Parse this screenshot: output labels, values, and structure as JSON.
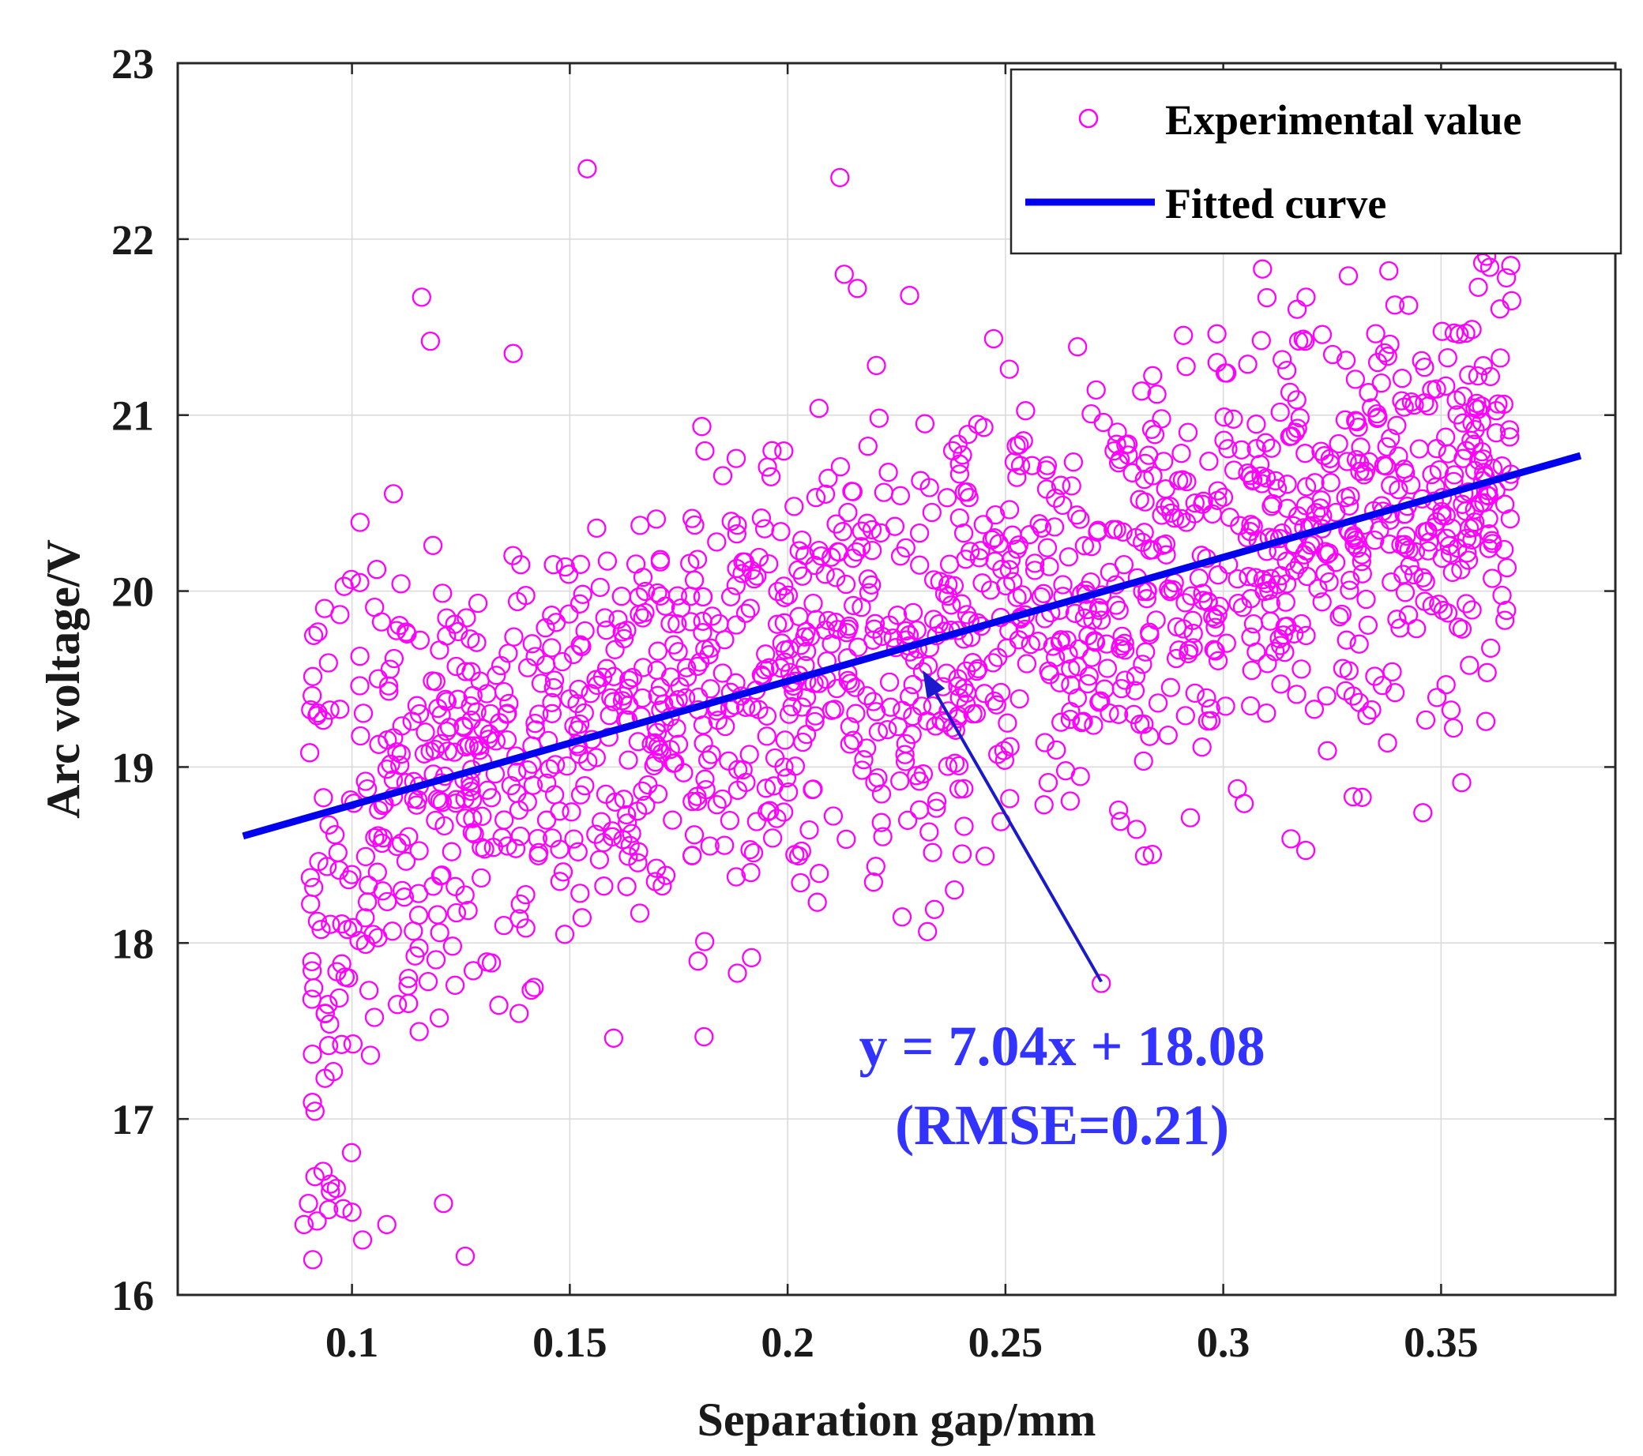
{
  "chart_data": {
    "type": "scatter",
    "title": "",
    "xlabel": "Separation gap/mm",
    "ylabel": "Arc voltage/V",
    "xlim": [
      0.06,
      0.39
    ],
    "ylim": [
      16,
      23
    ],
    "xticks": [
      0.1,
      0.15,
      0.2,
      0.25,
      0.3,
      0.35
    ],
    "xtick_labels": [
      "0.1",
      "0.15",
      "0.2",
      "0.25",
      "0.3",
      "0.35"
    ],
    "yticks": [
      16,
      17,
      18,
      19,
      20,
      21,
      22,
      23
    ],
    "ytick_labels": [
      "16",
      "17",
      "18",
      "19",
      "20",
      "21",
      "22",
      "23"
    ],
    "grid": true,
    "legend_position": "top-right",
    "series": [
      {
        "name": "Experimental value",
        "kind": "scatter",
        "marker": "circle-open",
        "color": "#ff00ff",
        "x_range": [
          0.09,
          0.367
        ],
        "point_count": 1500,
        "noise_std": 0.6,
        "outliers": [
          {
            "x": 0.154,
            "y": 22.4
          },
          {
            "x": 0.212,
            "y": 22.35
          },
          {
            "x": 0.116,
            "y": 21.67
          },
          {
            "x": 0.118,
            "y": 21.42
          },
          {
            "x": 0.137,
            "y": 21.35
          },
          {
            "x": 0.213,
            "y": 21.8
          },
          {
            "x": 0.216,
            "y": 21.72
          },
          {
            "x": 0.228,
            "y": 21.68
          },
          {
            "x": 0.309,
            "y": 21.83
          },
          {
            "x": 0.319,
            "y": 21.67
          },
          {
            "x": 0.338,
            "y": 21.82
          },
          {
            "x": 0.366,
            "y": 21.85
          },
          {
            "x": 0.365,
            "y": 21.78
          },
          {
            "x": 0.091,
            "y": 16.2
          },
          {
            "x": 0.126,
            "y": 16.22
          },
          {
            "x": 0.089,
            "y": 16.4
          },
          {
            "x": 0.09,
            "y": 16.52
          },
          {
            "x": 0.092,
            "y": 16.42
          },
          {
            "x": 0.108,
            "y": 16.4
          },
          {
            "x": 0.098,
            "y": 16.49
          },
          {
            "x": 0.1,
            "y": 16.47
          },
          {
            "x": 0.121,
            "y": 16.52
          },
          {
            "x": 0.272,
            "y": 17.77
          }
        ]
      },
      {
        "name": "Fitted curve",
        "kind": "line",
        "color": "#0000ee",
        "slope": 7.04,
        "intercept": 18.08,
        "x": [
          0.075,
          0.382
        ]
      }
    ],
    "annotation": {
      "equation": "y = 7.04x + 18.08",
      "rmse": "(RMSE=0.21)",
      "color": "#3333ff",
      "arrow_color": "#1a1acc",
      "arrow_from": {
        "x": 0.272,
        "y": 17.78
      },
      "arrow_to": {
        "x": 0.231,
        "y": 19.55
      },
      "text_anchor": {
        "x": 0.263,
        "y": 17.35
      }
    }
  }
}
